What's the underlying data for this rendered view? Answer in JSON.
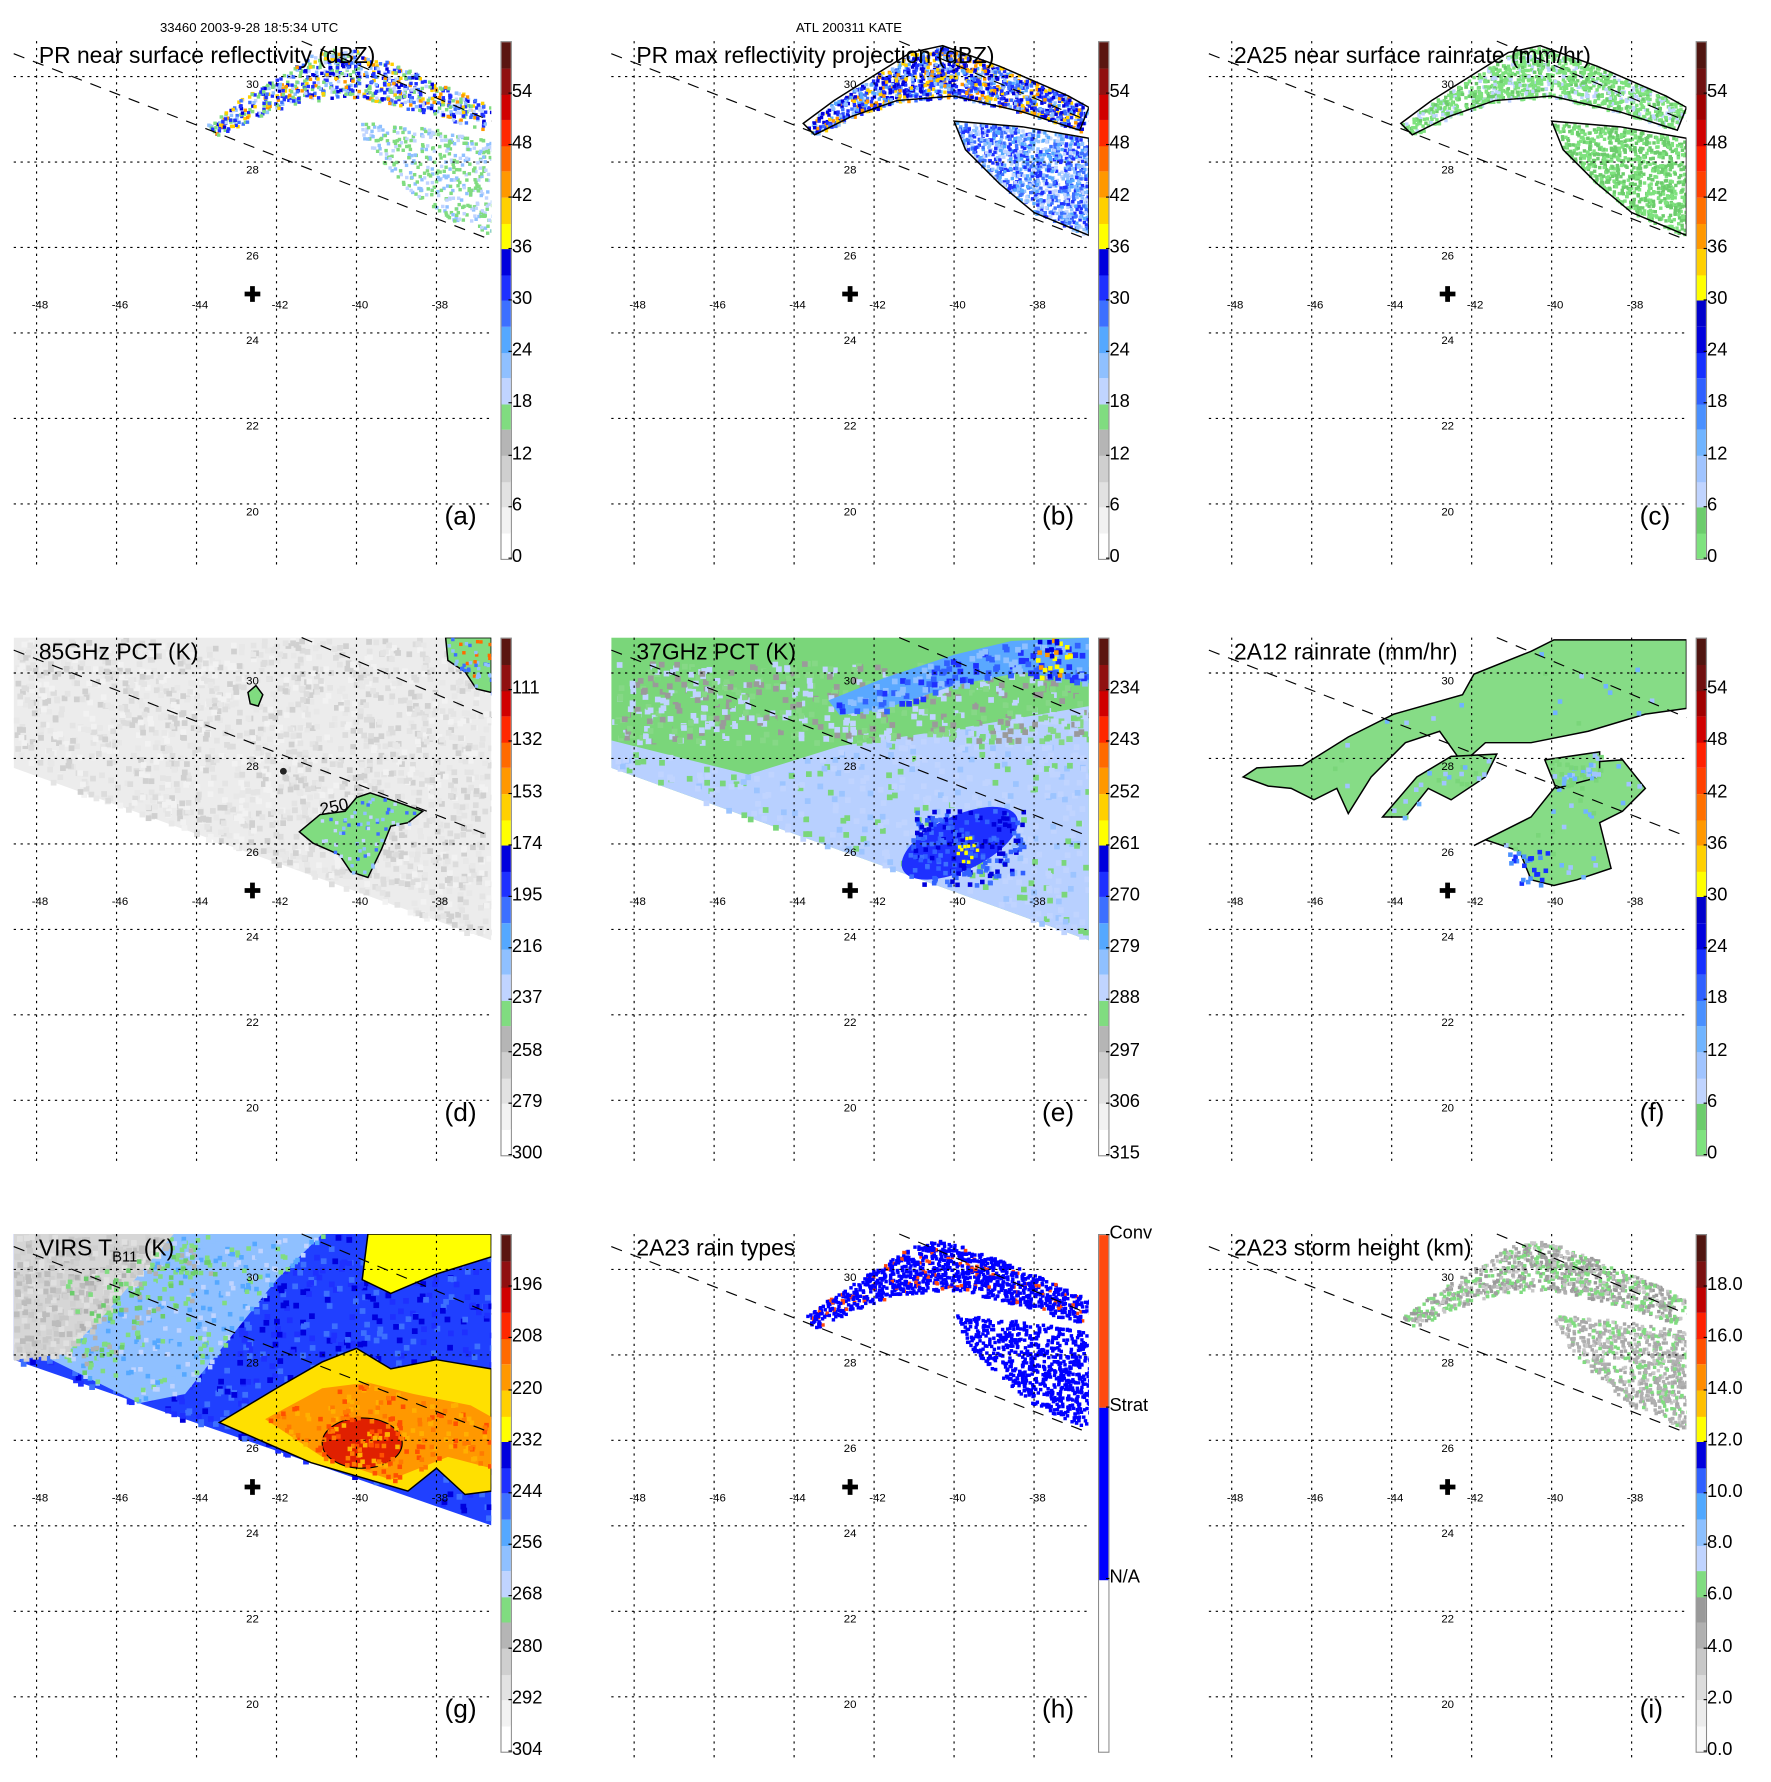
{
  "header": {
    "orbit_time": "33460 2003-9-28 18:5:34 UTC",
    "storm": "ATL 200311 KATE"
  },
  "map": {
    "lon_labels": [
      "-48",
      "-46",
      "-44",
      "-42",
      "-40",
      "-38"
    ],
    "lat_labels": [
      "30",
      "28",
      "26",
      "24",
      "22",
      "20"
    ],
    "center_marker": "plus-icon",
    "center_marker_glyph": "✚"
  },
  "palettes": {
    "reflectivity": [
      "#ffffff",
      "#f2f2f2",
      "#e2e2e2",
      "#cfcfcf",
      "#b5b5b5",
      "#80dc80",
      "#c0d4ff",
      "#8fc0ff",
      "#55a8ff",
      "#3d70ff",
      "#1e30ff",
      "#0000dd",
      "#ffff00",
      "#ffd000",
      "#ff9800",
      "#ff6a00",
      "#ff2800",
      "#d00000",
      "#901010",
      "#5a1510"
    ],
    "rainrate": [
      "#7ee27e",
      "#6ccc6c",
      "#c0d4ff",
      "#a0c4ff",
      "#70b4ff",
      "#4a90ff",
      "#3060ff",
      "#1530ff",
      "#0000dd",
      "#0000cc",
      "#ffff00",
      "#ffd000",
      "#ff9800",
      "#ff7000",
      "#ff4000",
      "#ff2000",
      "#d00000",
      "#a00000",
      "#701010",
      "#501510"
    ],
    "height": [
      "#f8f8f8",
      "#ececec",
      "#dcdcdc",
      "#c8c8c8",
      "#b0b0b0",
      "#9a9a9a",
      "#80dc80",
      "#c0d4ff",
      "#8cc0ff",
      "#50a8ff",
      "#3060ff",
      "#0000dd",
      "#ffff00",
      "#ffc000",
      "#ff8c00",
      "#ff5000",
      "#ff2000",
      "#c00000",
      "#7a1010",
      "#501510"
    ],
    "raintype": [
      "#ffffff",
      "#0000ff",
      "#ff4a10"
    ]
  },
  "panels": [
    {
      "id": "a",
      "title": "PR near surface reflectivity (dBZ)",
      "label": "(a)",
      "palette": "reflectivity",
      "ticks": [
        "0",
        "6",
        "12",
        "18",
        "24",
        "30",
        "36",
        "42",
        "48",
        "54"
      ]
    },
    {
      "id": "b",
      "title": "PR max reflectivity projection (dBZ)",
      "label": "(b)",
      "palette": "reflectivity",
      "ticks": [
        "0",
        "6",
        "12",
        "18",
        "24",
        "30",
        "36",
        "42",
        "48",
        "54"
      ]
    },
    {
      "id": "c",
      "title": "2A25 near surface rainrate (mm/hr)",
      "label": "(c)",
      "palette": "rainrate",
      "ticks": [
        "0",
        "6",
        "12",
        "18",
        "24",
        "30",
        "36",
        "42",
        "48",
        "54"
      ]
    },
    {
      "id": "d",
      "title": "85GHz PCT (K)",
      "label": "(d)",
      "palette": "reflectivity",
      "ticks": [
        "300",
        "279",
        "258",
        "237",
        "216",
        "195",
        "174",
        "153",
        "132",
        "111"
      ],
      "annotation": "250"
    },
    {
      "id": "e",
      "title": "37GHz PCT (K)",
      "label": "(e)",
      "palette": "reflectivity",
      "ticks": [
        "315",
        "306",
        "297",
        "288",
        "279",
        "270",
        "261",
        "252",
        "243",
        "234"
      ]
    },
    {
      "id": "f",
      "title": "2A12 rainrate (mm/hr)",
      "label": "(f)",
      "palette": "rainrate",
      "ticks": [
        "0",
        "6",
        "12",
        "18",
        "24",
        "30",
        "36",
        "42",
        "48",
        "54"
      ]
    },
    {
      "id": "g",
      "title": "VIRS T",
      "title_sub": "B11",
      "title_suffix": " (K)",
      "label": "(g)",
      "palette": "reflectivity",
      "ticks": [
        "304",
        "292",
        "280",
        "268",
        "256",
        "244",
        "232",
        "220",
        "208",
        "196"
      ]
    },
    {
      "id": "h",
      "title": "2A23 rain types",
      "label": "(h)",
      "palette": "raintype",
      "ticks": [
        "N/A",
        "Strat",
        "Conv"
      ]
    },
    {
      "id": "i",
      "title": "2A23 storm height (km)",
      "label": "(i)",
      "palette": "height",
      "ticks": [
        "0.0",
        "2.0",
        "4.0",
        "6.0",
        "8.0",
        "10.0",
        "12.0",
        "14.0",
        "16.0",
        "18.0"
      ]
    }
  ]
}
